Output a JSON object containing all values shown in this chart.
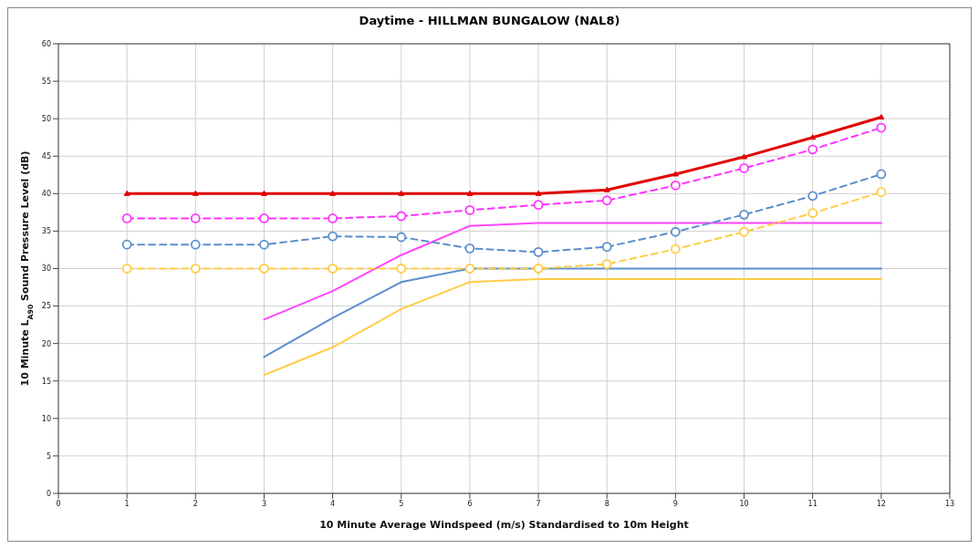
{
  "chart_data": {
    "type": "line",
    "title": "Daytime - HILLMAN BUNGALOW (NAL8)",
    "xlabel": "10 Minute Average Windspeed (m/s) Standardised to 10m Height",
    "ylabel": "10 Minute L$_{A90}$ Sound Pressure Level (dB)",
    "x": [
      1,
      2,
      3,
      4,
      5,
      6,
      7,
      8,
      9,
      10,
      11,
      12
    ],
    "series": [
      {
        "color": "#e00000",
        "marker": "triangle",
        "line_style": "solid",
        "values": [
          40,
          40,
          40,
          40,
          40,
          40,
          40,
          40.5,
          42.6,
          44.9,
          47.5,
          50.2
        ]
      },
      {
        "color": "#ff33ff",
        "marker": "circle",
        "line_style": "dashed",
        "values": [
          36.7,
          36.7,
          36.7,
          36.7,
          37.0,
          37.8,
          38.5,
          39.1,
          41.1,
          43.4,
          45.9,
          48.8
        ]
      },
      {
        "color": "#5b8fcc",
        "marker": "circle",
        "line_style": "dashed",
        "values": [
          33.2,
          33.2,
          33.2,
          34.3,
          34.2,
          32.7,
          32.2,
          32.9,
          34.9,
          37.2,
          39.7,
          42.6
        ]
      },
      {
        "color": "#ffcc44",
        "marker": "circle",
        "line_style": "dashed",
        "values": [
          30,
          30,
          30,
          30,
          30,
          30,
          30,
          30.6,
          32.6,
          34.9,
          37.4,
          40.2
        ]
      },
      {
        "color": "#ff44ff",
        "marker": "none",
        "line_style": "solid",
        "values": [
          null,
          null,
          23.2,
          27.0,
          31.8,
          35.7,
          36.1,
          36.1,
          36.1,
          36.1,
          36.1,
          36.1
        ]
      },
      {
        "color": "#5b8fcc",
        "marker": "none",
        "line_style": "solid",
        "values": [
          null,
          null,
          18.2,
          23.4,
          28.2,
          30.0,
          30.0,
          30.0,
          30.0,
          30.0,
          30.0,
          30.0
        ]
      },
      {
        "color": "#ffcc44",
        "marker": "none",
        "line_style": "solid",
        "values": [
          null,
          null,
          15.8,
          19.5,
          24.6,
          28.2,
          28.6,
          28.6,
          28.6,
          28.6,
          28.6,
          28.6
        ]
      }
    ],
    "xlim": [
      0,
      13
    ],
    "xticks": [
      0,
      1,
      2,
      3,
      4,
      5,
      6,
      7,
      8,
      9,
      10,
      11,
      12,
      13
    ],
    "ylim": [
      0,
      60
    ],
    "yticks": [
      0,
      5,
      10,
      15,
      20,
      25,
      30,
      35,
      40,
      45,
      50,
      55,
      60
    ],
    "grid": true
  }
}
